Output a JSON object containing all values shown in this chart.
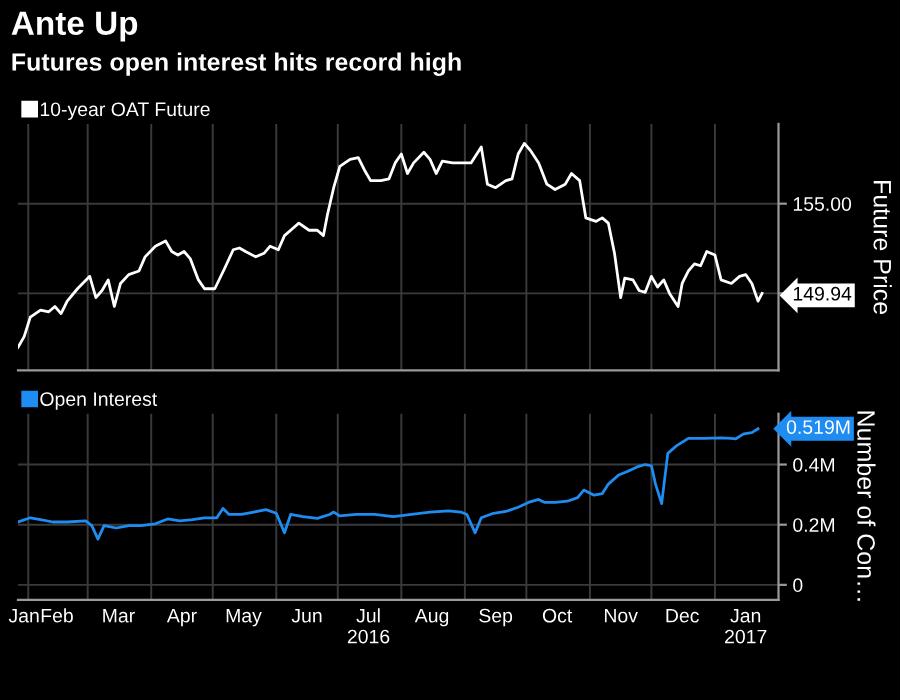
{
  "chart_data": [
    {
      "type": "line",
      "title": "Ante Up",
      "subtitle": "Futures open interest hits record high",
      "ylabel": "Future Price",
      "legend": "top left",
      "grid": true,
      "tick_labels": "y",
      "xlim": [
        "2016-01-27",
        "2017-02-01"
      ],
      "xticks": [
        {
          "value": "2016-02-01",
          "label": null
        },
        {
          "value": "2016-03-01",
          "label": null
        },
        {
          "value": "2016-04-01",
          "label": null
        },
        {
          "value": "2016-05-01",
          "label": null
        },
        {
          "value": "2016-06-01",
          "label": null
        },
        {
          "value": "2016-07-01",
          "label": null
        },
        {
          "value": "2016-08-01",
          "label": null
        },
        {
          "value": "2016-09-01",
          "label": null
        },
        {
          "value": "2016-10-01",
          "label": null
        },
        {
          "value": "2016-11-01",
          "label": null
        },
        {
          "value": "2016-12-01",
          "label": null
        },
        {
          "value": "2017-01-01",
          "label": null
        }
      ],
      "ylim": [
        145.6,
        159.5
      ],
      "yticks": [
        {
          "value": 149.94,
          "label": "149.94"
        },
        {
          "value": 155,
          "label": "155.00"
        }
      ],
      "x": [
        "2016-01-27",
        "2016-01-30",
        "2016-02-02",
        "2016-02-07",
        "2016-02-11",
        "2016-02-14",
        "2016-02-17",
        "2016-02-20",
        "2016-02-25",
        "2016-03-02",
        "2016-03-05",
        "2016-03-08",
        "2016-03-11",
        "2016-03-14",
        "2016-03-17",
        "2016-03-21",
        "2016-03-26",
        "2016-03-29",
        "2016-04-03",
        "2016-04-08",
        "2016-04-11",
        "2016-04-14",
        "2016-04-17",
        "2016-04-20",
        "2016-04-24",
        "2016-04-27",
        "2016-05-02",
        "2016-05-07",
        "2016-05-11",
        "2016-05-14",
        "2016-05-17",
        "2016-05-22",
        "2016-05-26",
        "2016-05-29",
        "2016-06-02",
        "2016-06-05",
        "2016-06-09",
        "2016-06-12",
        "2016-06-17",
        "2016-06-21",
        "2016-06-24",
        "2016-06-26",
        "2016-06-29",
        "2016-07-02",
        "2016-07-07",
        "2016-07-11",
        "2016-07-14",
        "2016-07-17",
        "2016-07-22",
        "2016-07-26",
        "2016-07-29",
        "2016-08-01",
        "2016-08-04",
        "2016-08-07",
        "2016-08-12",
        "2016-08-15",
        "2016-08-18",
        "2016-08-21",
        "2016-08-26",
        "2016-08-30",
        "2016-09-04",
        "2016-09-09",
        "2016-09-12",
        "2016-09-16",
        "2016-09-21",
        "2016-09-24",
        "2016-09-27",
        "2016-09-30",
        "2016-10-03",
        "2016-10-07",
        "2016-10-11",
        "2016-10-15",
        "2016-10-20",
        "2016-10-23",
        "2016-10-27",
        "2016-10-30",
        "2016-11-04",
        "2016-11-07",
        "2016-11-10",
        "2016-11-13",
        "2016-11-16",
        "2016-11-18",
        "2016-11-22",
        "2016-11-25",
        "2016-11-28",
        "2016-12-01",
        "2016-12-04",
        "2016-12-07",
        "2016-12-10",
        "2016-12-14",
        "2016-12-16",
        "2016-12-19",
        "2016-12-22",
        "2016-12-25",
        "2016-12-28",
        "2017-01-01",
        "2017-01-04",
        "2017-01-09",
        "2017-01-13",
        "2017-01-16",
        "2017-01-19",
        "2017-01-22",
        "2017-01-24"
      ],
      "series": [
        {
          "name": "10-year OAT Future",
          "color": "#ffffff",
          "values": [
            146.9,
            147.5,
            148.6,
            149.0,
            148.9,
            149.2,
            148.8,
            149.5,
            150.2,
            150.9,
            149.7,
            150.1,
            150.7,
            149.2,
            150.5,
            151.0,
            151.2,
            152.0,
            152.6,
            152.9,
            152.3,
            152.1,
            152.3,
            151.9,
            150.7,
            150.2,
            150.2,
            151.4,
            152.4,
            152.5,
            152.3,
            152.0,
            152.2,
            152.6,
            152.4,
            153.2,
            153.6,
            153.9,
            153.5,
            153.5,
            153.2,
            154.4,
            155.9,
            157.1,
            157.5,
            157.6,
            156.9,
            156.3,
            156.3,
            156.4,
            157.3,
            157.8,
            156.7,
            157.3,
            157.9,
            157.5,
            156.7,
            157.4,
            157.3,
            157.3,
            157.3,
            158.2,
            156.1,
            155.9,
            156.3,
            156.4,
            157.8,
            158.4,
            158.0,
            157.3,
            156.1,
            155.8,
            156.1,
            156.7,
            156.3,
            154.2,
            154.0,
            154.2,
            153.9,
            152.2,
            149.7,
            150.8,
            150.7,
            150.1,
            150.0,
            150.9,
            150.3,
            150.7,
            149.9,
            149.2,
            150.5,
            151.2,
            151.6,
            151.5,
            152.3,
            152.1,
            150.7,
            150.5,
            150.9,
            151.0,
            150.5,
            149.5,
            149.94
          ],
          "value_labels": [
            null,
            null,
            null,
            null,
            null,
            null,
            null,
            null,
            null,
            null,
            null,
            null,
            null,
            null,
            null,
            null,
            null,
            null,
            null,
            null,
            null,
            null,
            null,
            null,
            null,
            null,
            null,
            null,
            null,
            null,
            null,
            null,
            null,
            null,
            null,
            null,
            null,
            null,
            null,
            null,
            null,
            null,
            null,
            null,
            null,
            null,
            null,
            null,
            null,
            null,
            null,
            null,
            null,
            null,
            null,
            null,
            null,
            null,
            null,
            null,
            null,
            null,
            null,
            null,
            null,
            null,
            null,
            null,
            null,
            null,
            null,
            null,
            null,
            null,
            null,
            null,
            null,
            null,
            null,
            null,
            null,
            null,
            null,
            null,
            null,
            null,
            null,
            null,
            null,
            null,
            null,
            null,
            null,
            null,
            null,
            null,
            null,
            null,
            null,
            null,
            null,
            null,
            null
          ]
        }
      ]
    },
    {
      "type": "line",
      "ylabel": "Number of Con…",
      "legend": "top left",
      "grid": true,
      "xlim": [
        "2016-01-27",
        "2017-02-01"
      ],
      "xticks": [
        {
          "value": "2016-01-30",
          "label": "Jan"
        },
        {
          "value": "2016-02-01",
          "label": null
        },
        {
          "value": "2016-02-15",
          "label": "Feb"
        },
        {
          "value": "2016-03-01",
          "label": null
        },
        {
          "value": "2016-03-16",
          "label": "Mar"
        },
        {
          "value": "2016-04-01",
          "label": null
        },
        {
          "value": "2016-04-16",
          "label": "Apr"
        },
        {
          "value": "2016-05-01",
          "label": null
        },
        {
          "value": "2016-05-16",
          "label": "May"
        },
        {
          "value": "2016-06-01",
          "label": null
        },
        {
          "value": "2016-06-16",
          "label": "Jun"
        },
        {
          "value": "2016-07-01",
          "label": null
        },
        {
          "value": "2016-07-16",
          "label": "Jul\n2016"
        },
        {
          "value": "2016-08-01",
          "label": null
        },
        {
          "value": "2016-08-16",
          "label": "Aug"
        },
        {
          "value": "2016-09-01",
          "label": null
        },
        {
          "value": "2016-09-16",
          "label": "Sep"
        },
        {
          "value": "2016-10-01",
          "label": null
        },
        {
          "value": "2016-10-16",
          "label": "Oct"
        },
        {
          "value": "2016-11-01",
          "label": null
        },
        {
          "value": "2016-11-16",
          "label": "Nov"
        },
        {
          "value": "2016-12-01",
          "label": null
        },
        {
          "value": "2016-12-16",
          "label": "Dec"
        },
        {
          "value": "2017-01-01",
          "label": null
        },
        {
          "value": "2017-01-16",
          "label": "Jan\n2017"
        }
      ],
      "ylim": [
        -0.05,
        0.569
      ],
      "yticks": [
        {
          "value": 0,
          "label": "0"
        },
        {
          "value": 0.2,
          "label": "0.2M"
        },
        {
          "value": 0.4,
          "label": "0.4M"
        }
      ],
      "x": [
        "2016-01-27",
        "2016-02-02",
        "2016-02-07",
        "2016-02-13",
        "2016-02-20",
        "2016-02-29",
        "2016-03-03",
        "2016-03-06",
        "2016-03-09",
        "2016-03-15",
        "2016-03-21",
        "2016-03-27",
        "2016-04-03",
        "2016-04-09",
        "2016-04-15",
        "2016-04-21",
        "2016-04-27",
        "2016-05-03",
        "2016-05-06",
        "2016-05-09",
        "2016-05-15",
        "2016-05-21",
        "2016-05-27",
        "2016-06-01",
        "2016-06-05",
        "2016-06-08",
        "2016-06-14",
        "2016-06-21",
        "2016-06-27",
        "2016-06-29",
        "2016-07-02",
        "2016-07-10",
        "2016-07-19",
        "2016-07-28",
        "2016-08-06",
        "2016-08-15",
        "2016-08-24",
        "2016-08-30",
        "2016-09-02",
        "2016-09-06",
        "2016-09-09",
        "2016-09-15",
        "2016-09-21",
        "2016-09-27",
        "2016-10-02",
        "2016-10-07",
        "2016-10-10",
        "2016-10-15",
        "2016-10-21",
        "2016-10-26",
        "2016-10-29",
        "2016-11-03",
        "2016-11-07",
        "2016-11-10",
        "2016-11-15",
        "2016-11-19",
        "2016-11-24",
        "2016-11-28",
        "2016-12-01",
        "2016-12-03",
        "2016-12-06",
        "2016-12-09",
        "2016-12-13",
        "2016-12-19",
        "2016-12-27",
        "2017-01-04",
        "2017-01-09",
        "2017-01-11",
        "2017-01-15",
        "2017-01-19",
        "2017-01-22"
      ],
      "series": [
        {
          "name": "Open Interest",
          "color": "#1e8cf0",
          "values": [
            0.209,
            0.223,
            0.217,
            0.209,
            0.209,
            0.213,
            0.197,
            0.152,
            0.197,
            0.189,
            0.197,
            0.197,
            0.203,
            0.219,
            0.213,
            0.217,
            0.223,
            0.223,
            0.254,
            0.234,
            0.234,
            0.242,
            0.25,
            0.238,
            0.173,
            0.234,
            0.227,
            0.221,
            0.234,
            0.242,
            0.229,
            0.234,
            0.234,
            0.227,
            0.234,
            0.242,
            0.246,
            0.242,
            0.234,
            0.173,
            0.223,
            0.238,
            0.244,
            0.258,
            0.274,
            0.284,
            0.274,
            0.274,
            0.278,
            0.29,
            0.315,
            0.298,
            0.303,
            0.335,
            0.365,
            0.376,
            0.392,
            0.4,
            0.396,
            0.335,
            0.27,
            0.437,
            0.461,
            0.487,
            0.487,
            0.489,
            0.487,
            0.485,
            0.502,
            0.506,
            0.519
          ],
          "value_labels": [
            null,
            null,
            null,
            null,
            null,
            null,
            null,
            null,
            null,
            null,
            null,
            null,
            null,
            null,
            null,
            null,
            null,
            null,
            null,
            null,
            null,
            null,
            null,
            null,
            null,
            null,
            null,
            null,
            null,
            null,
            null,
            null,
            null,
            null,
            null,
            null,
            null,
            null,
            null,
            null,
            null,
            null,
            null,
            null,
            null,
            null,
            null,
            null,
            null,
            null,
            null,
            null,
            null,
            null,
            null,
            null,
            null,
            null,
            null,
            null,
            null,
            null,
            null,
            null,
            null,
            null,
            null,
            null,
            null,
            null,
            "0.519M"
          ]
        }
      ]
    }
  ]
}
